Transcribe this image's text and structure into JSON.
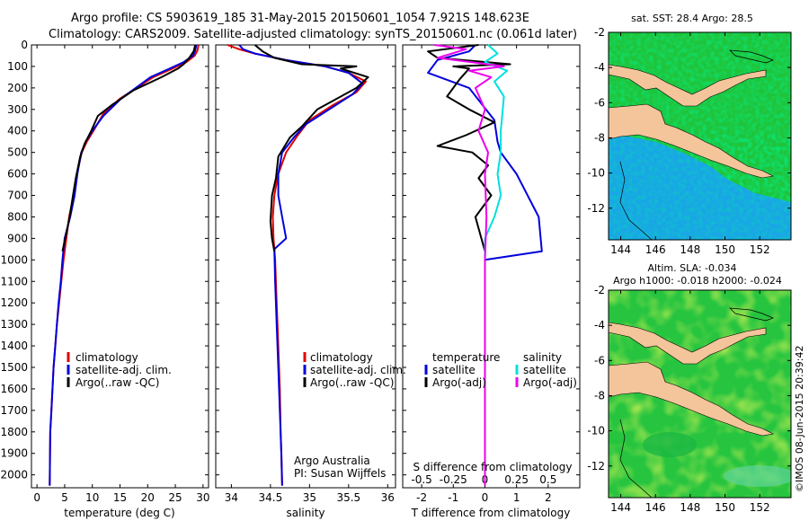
{
  "header": {
    "line1": "Argo profile: CS 5903619_185 31-May-2015 20150601_1054 7.921S 148.623E",
    "line2": "Climatology: CARS2009. Satellite-adjusted climatology: synTS_20150601.nc (0.061d later)"
  },
  "colors": {
    "climatology": "#e00000",
    "satellite": "#0000dd",
    "argo": "#000000",
    "satellite_diff": "#00e0e0",
    "argo_diff": "#ee00ee",
    "land": "#f4c49a"
  },
  "chart_data": [
    {
      "type": "line",
      "id": "temperature",
      "xlabel": "temperature (deg C)",
      "xlim": [
        -1,
        31
      ],
      "xticks": [
        0,
        5,
        10,
        15,
        20,
        25,
        30
      ],
      "xtick_labels": [
        "0",
        "5",
        "10",
        "15",
        "20",
        "25",
        "30"
      ],
      "ylim": [
        2060,
        0
      ],
      "yticks": [
        0,
        100,
        200,
        300,
        400,
        500,
        600,
        700,
        800,
        900,
        1000,
        1100,
        1200,
        1300,
        1400,
        1500,
        1600,
        1700,
        1800,
        1900,
        2000
      ],
      "ytick_labels": [
        "0",
        "100",
        "200",
        "300",
        "400",
        "500",
        "600",
        "700",
        "800",
        "900",
        "1000",
        "1100",
        "1200",
        "1300",
        "1400",
        "1500",
        "1600",
        "1700",
        "1800",
        "1900",
        "2000"
      ],
      "series": [
        {
          "name": "climatology",
          "color": "#e00000",
          "x": [
            29.2,
            29.0,
            28.5,
            27.0,
            24.5,
            21.0,
            15.0,
            12.0,
            10.2,
            9.0,
            8.1,
            7.2,
            6.6,
            5.8,
            5.3,
            4.8,
            4.4,
            4.0,
            3.6,
            3.3,
            3.0,
            2.8,
            2.6,
            2.4,
            2.3
          ],
          "y": [
            0,
            25,
            50,
            80,
            110,
            150,
            250,
            320,
            400,
            450,
            500,
            600,
            700,
            800,
            900,
            1000,
            1100,
            1200,
            1300,
            1400,
            1500,
            1600,
            1700,
            1800,
            2050
          ]
        },
        {
          "name": "satellite-adj. clim.",
          "color": "#0000dd",
          "x": [
            28.8,
            28.6,
            28.2,
            26.5,
            24.0,
            20.5,
            15.2,
            12.0,
            10.0,
            8.8,
            8.0,
            7.3,
            6.8,
            6.0,
            5.0,
            4.6,
            4.3,
            3.9,
            3.6,
            3.3,
            3.0,
            2.8,
            2.6,
            2.4,
            2.3
          ],
          "y": [
            0,
            25,
            50,
            80,
            110,
            150,
            250,
            330,
            400,
            450,
            500,
            600,
            700,
            800,
            900,
            1000,
            1100,
            1200,
            1300,
            1400,
            1500,
            1600,
            1700,
            1800,
            2050
          ]
        },
        {
          "name": "Argo(..raw -QC)",
          "color": "#000000",
          "x": [
            28.6,
            28.3,
            27.5,
            26.5,
            25.5,
            22.5,
            17.5,
            13.5,
            11.0,
            9.8,
            8.6,
            7.8,
            7.0,
            6.5,
            5.9,
            5.1,
            4.6
          ],
          "y": [
            0,
            30,
            60,
            90,
            110,
            150,
            210,
            280,
            330,
            400,
            460,
            520,
            620,
            700,
            800,
            900,
            960
          ]
        }
      ],
      "legend": [
        "climatology",
        "satellite-adj. clim.",
        "Argo(..raw -QC)"
      ]
    },
    {
      "type": "line",
      "id": "salinity",
      "xlabel": "salinity",
      "xlim": [
        33.8,
        36.1
      ],
      "xticks": [
        34,
        34.5,
        35,
        35.5,
        36
      ],
      "xtick_labels": [
        "34",
        "34.5",
        "35",
        "35.5",
        "36"
      ],
      "ylim": [
        2060,
        0
      ],
      "series": [
        {
          "name": "climatology",
          "color": "#e00000",
          "x": [
            33.95,
            34.1,
            34.3,
            34.7,
            35.2,
            35.5,
            35.72,
            35.6,
            35.3,
            35.0,
            34.85,
            34.7,
            34.6,
            34.55,
            34.53,
            34.54,
            34.56,
            34.58,
            34.6,
            34.62,
            34.63,
            34.64,
            34.65
          ],
          "y": [
            0,
            20,
            40,
            70,
            100,
            130,
            170,
            220,
            280,
            350,
            420,
            500,
            600,
            700,
            800,
            900,
            1000,
            1200,
            1400,
            1600,
            1800,
            1900,
            2050
          ]
        },
        {
          "name": "satellite-adj. clim.",
          "color": "#0000dd",
          "x": [
            34.1,
            34.15,
            34.3,
            34.7,
            35.2,
            35.5,
            35.68,
            35.55,
            35.25,
            34.95,
            34.8,
            34.65,
            34.6,
            34.6,
            34.65,
            34.7,
            34.55,
            34.56,
            34.58,
            34.6,
            34.62,
            34.64,
            34.65
          ],
          "y": [
            0,
            20,
            40,
            70,
            100,
            130,
            180,
            230,
            300,
            370,
            430,
            500,
            600,
            700,
            800,
            900,
            950,
            1100,
            1300,
            1500,
            1700,
            1900,
            2050
          ]
        },
        {
          "name": "Argo(..raw -QC)",
          "color": "#000000",
          "x": [
            34.3,
            34.4,
            34.55,
            34.9,
            35.6,
            35.4,
            35.75,
            35.6,
            35.1,
            34.9,
            34.75,
            34.6,
            34.57,
            34.52,
            34.5,
            34.52,
            34.55
          ],
          "y": [
            0,
            30,
            60,
            90,
            100,
            110,
            150,
            200,
            300,
            380,
            430,
            520,
            620,
            700,
            820,
            900,
            960
          ]
        }
      ],
      "legend": [
        "climatology",
        "satellite-adj. clim.",
        "Argo(..raw -QC)"
      ],
      "annotation": [
        "Argo Australia",
        "PI: Susan Wijffels"
      ]
    },
    {
      "type": "line",
      "id": "differences",
      "xlabel": "T difference from climatology",
      "xlim": [
        -2.6,
        3.0
      ],
      "xticks": [
        -2,
        -1,
        0,
        1,
        2
      ],
      "xtick_labels": [
        "-2",
        "-1",
        "0",
        "1",
        "2"
      ],
      "top_xlabel": "S difference from climatology",
      "top_xtick_labels": [
        "-0.5",
        "-0.25",
        "0",
        "0.25",
        "0.5"
      ],
      "top_xtick_values": [
        -2,
        -1,
        0,
        1,
        2
      ],
      "ylim": [
        2060,
        0
      ],
      "series": [
        {
          "name": "temperature satellite",
          "color": "#0000dd",
          "x": [
            -0.3,
            -0.5,
            -1.5,
            -1.8,
            -0.5,
            0.3,
            0.4,
            0.5,
            1.0,
            1.7,
            1.8,
            0.0,
            0.0,
            0.0
          ],
          "y": [
            0,
            30,
            70,
            130,
            200,
            350,
            450,
            500,
            600,
            800,
            960,
            1000,
            1200,
            2050
          ]
        },
        {
          "name": "temperature Argo(-adj)",
          "color": "#000000",
          "x": [
            -0.2,
            -1.8,
            -1.5,
            0.8,
            -1.0,
            -0.5,
            -0.8,
            -1.2,
            -0.5,
            0.3,
            -0.6,
            -1.5,
            -0.4,
            0.1,
            -0.2,
            0.2,
            -0.3,
            0.0
          ],
          "y": [
            0,
            30,
            60,
            90,
            100,
            110,
            160,
            240,
            300,
            360,
            420,
            470,
            500,
            560,
            620,
            700,
            800,
            960
          ]
        },
        {
          "name": "salinity satellite",
          "color": "#00e0e0",
          "x": [
            0.1,
            0.4,
            0.0,
            0.7,
            0.3,
            0.6,
            0.5,
            0.5,
            0.4,
            0.5,
            0.3,
            0.0,
            0.0,
            0.0
          ],
          "y": [
            0,
            40,
            80,
            120,
            170,
            240,
            400,
            500,
            600,
            700,
            800,
            900,
            1100,
            2050
          ]
        },
        {
          "name": "salinity Argo(-adj)",
          "color": "#ee00ee",
          "x": [
            -1.6,
            -0.6,
            -1.5,
            0.6,
            -0.5,
            0.2,
            -0.3,
            0.0,
            -0.2,
            0.1,
            0.0,
            0.05,
            0.0,
            0.0
          ],
          "y": [
            0,
            20,
            60,
            100,
            120,
            150,
            200,
            300,
            400,
            500,
            600,
            800,
            1000,
            2050
          ]
        }
      ],
      "legend_temperature": {
        "title": "temperature",
        "items": [
          "satellite",
          "Argo(-adj)"
        ]
      },
      "legend_salinity": {
        "title": "salinity",
        "items": [
          "satellite",
          "Argo(-adj)"
        ]
      }
    }
  ],
  "maps": {
    "sst_title": "sat. SST: 28.4  Argo: 28.5",
    "sla_title_1": "Altim. SLA: -0.034",
    "sla_title_2": "Argo h1000: -0.018  h2000: -0.024",
    "lon_ticks": [
      "144",
      "146",
      "148",
      "150",
      "152"
    ],
    "lat_ticks": [
      "-2",
      "-4",
      "-6",
      "-8",
      "-10",
      "-12"
    ],
    "credit": "©IMOS 08-Jun-2015 20:39:42"
  }
}
